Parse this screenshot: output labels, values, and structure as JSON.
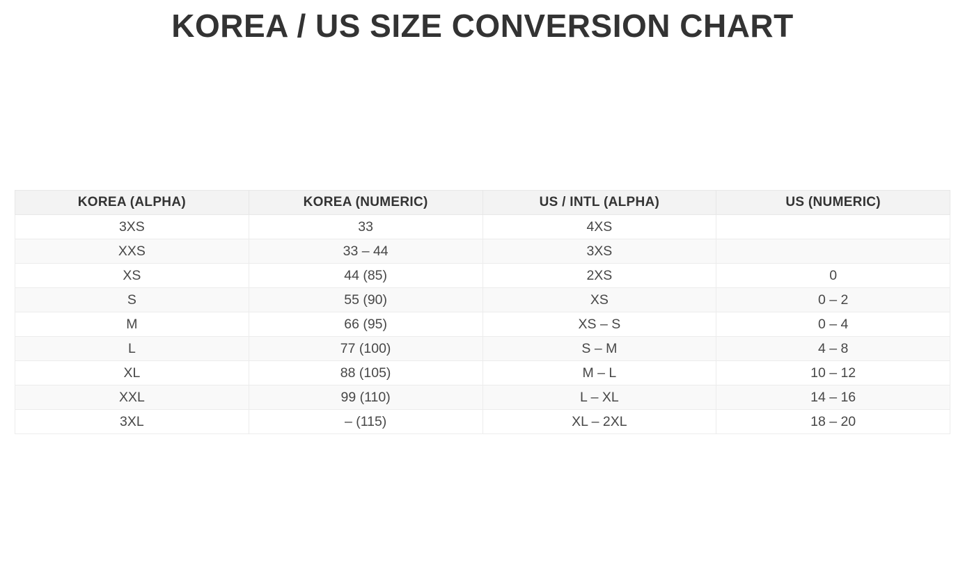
{
  "chart_data": {
    "type": "table",
    "title": "KOREA / US SIZE CONVERSION CHART",
    "columns": [
      "KOREA (ALPHA)",
      "KOREA (NUMERIC)",
      "US / INTL (ALPHA)",
      "US (NUMERIC)"
    ],
    "rows": [
      [
        "3XS",
        "33",
        "4XS",
        ""
      ],
      [
        "XXS",
        "33 – 44",
        "3XS",
        ""
      ],
      [
        "XS",
        "44 (85)",
        "2XS",
        "0"
      ],
      [
        "S",
        "55 (90)",
        "XS",
        "0 – 2"
      ],
      [
        "M",
        "66 (95)",
        "XS – S",
        "0 – 4"
      ],
      [
        "L",
        "77 (100)",
        "S – M",
        "4 – 8"
      ],
      [
        "XL",
        "88 (105)",
        "M – L",
        "10 – 12"
      ],
      [
        "XXL",
        "99 (110)",
        "L – XL",
        "14 – 16"
      ],
      [
        "3XL",
        "– (115)",
        "XL – 2XL",
        "18 – 20"
      ]
    ]
  },
  "colors": {
    "background": "#ffffff",
    "header_bg": "#f3f3f3",
    "row_alt_bg": "#f9f9f9",
    "border": "#e7e7e7",
    "title_text": "#333333",
    "body_text": "#474747"
  }
}
